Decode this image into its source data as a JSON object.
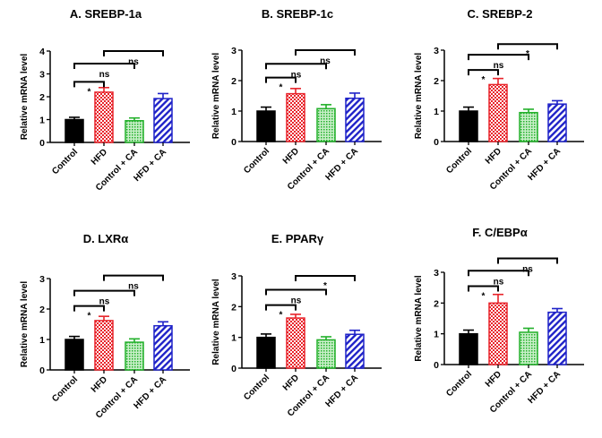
{
  "colors": {
    "Control": "#000000",
    "HFD": "#e8232a",
    "Control + CA": "#22b02a",
    "HFD + CA": "#1f22c8"
  },
  "chart_data": [
    {
      "type": "bar",
      "id": "A",
      "title": "A. SREBP-1a",
      "xlabel": "",
      "ylabel": "Relative mRNA level",
      "ylim": [
        0,
        4
      ],
      "yticks": [
        0,
        1,
        2,
        3,
        4
      ],
      "categories": [
        "Control",
        "HFD",
        "Control + CA",
        "HFD + CA"
      ],
      "values": [
        1.0,
        2.2,
        0.95,
        1.92
      ],
      "errors": [
        0.1,
        0.2,
        0.12,
        0.22
      ],
      "patterns": [
        "solid",
        "checker",
        "dots",
        "diagonal"
      ],
      "comparisons": [
        {
          "from": "Control",
          "to": "HFD",
          "label": "*",
          "level": 2.65
        },
        {
          "from": "Control",
          "to": "Control + CA",
          "label": "ns",
          "level": 3.45
        },
        {
          "from": "HFD",
          "to": "HFD + CA",
          "label": "ns",
          "level": 4.0
        }
      ]
    },
    {
      "type": "bar",
      "id": "B",
      "title": "B. SREBP-1c",
      "xlabel": "",
      "ylabel": "Relative mRNA level",
      "ylim": [
        0,
        3
      ],
      "yticks": [
        0,
        1,
        2,
        3
      ],
      "categories": [
        "Control",
        "HFD",
        "Control + CA",
        "HFD + CA"
      ],
      "values": [
        1.0,
        1.57,
        1.08,
        1.42
      ],
      "errors": [
        0.13,
        0.17,
        0.13,
        0.17
      ],
      "patterns": [
        "solid",
        "checker",
        "dots",
        "diagonal"
      ],
      "comparisons": [
        {
          "from": "Control",
          "to": "HFD",
          "label": "*",
          "level": 2.1
        },
        {
          "from": "Control",
          "to": "Control + CA",
          "label": "ns",
          "level": 2.55
        },
        {
          "from": "HFD",
          "to": "HFD + CA",
          "label": "ns",
          "level": 3.0
        }
      ]
    },
    {
      "type": "bar",
      "id": "C",
      "title": "C. SREBP-2",
      "xlabel": "",
      "ylabel": "Relative mRNA level",
      "ylim": [
        0,
        3
      ],
      "yticks": [
        0,
        1,
        2,
        3
      ],
      "categories": [
        "Control",
        "HFD",
        "Control + CA",
        "HFD + CA"
      ],
      "values": [
        1.0,
        1.87,
        0.95,
        1.23
      ],
      "errors": [
        0.13,
        0.2,
        0.11,
        0.11
      ],
      "patterns": [
        "solid",
        "checker",
        "dots",
        "diagonal"
      ],
      "comparisons": [
        {
          "from": "Control",
          "to": "HFD",
          "label": "*",
          "level": 2.35
        },
        {
          "from": "Control",
          "to": "Control + CA",
          "label": "ns",
          "level": 2.85
        },
        {
          "from": "HFD",
          "to": "HFD + CA",
          "label": "*",
          "level": 3.2
        }
      ]
    },
    {
      "type": "bar",
      "id": "D",
      "title": "D. LXRα",
      "xlabel": "",
      "ylabel": "Relative mRNA level",
      "ylim": [
        0,
        3
      ],
      "yticks": [
        0,
        1,
        2,
        3
      ],
      "categories": [
        "Control",
        "HFD",
        "Control + CA",
        "HFD + CA"
      ],
      "values": [
        1.0,
        1.62,
        0.91,
        1.45
      ],
      "errors": [
        0.1,
        0.14,
        0.11,
        0.13
      ],
      "patterns": [
        "solid",
        "checker",
        "dots",
        "diagonal"
      ],
      "comparisons": [
        {
          "from": "Control",
          "to": "HFD",
          "label": "*",
          "level": 2.1
        },
        {
          "from": "Control",
          "to": "Control + CA",
          "label": "ns",
          "level": 2.6
        },
        {
          "from": "HFD",
          "to": "HFD + CA",
          "label": "ns",
          "level": 3.1
        }
      ]
    },
    {
      "type": "bar",
      "id": "E",
      "title": "E. PPARγ",
      "xlabel": "",
      "ylabel": "Relative mRNA level",
      "ylim": [
        0,
        3
      ],
      "yticks": [
        0,
        1,
        2,
        3
      ],
      "categories": [
        "Control",
        "HFD",
        "Control + CA",
        "HFD + CA"
      ],
      "values": [
        1.0,
        1.63,
        0.92,
        1.1
      ],
      "errors": [
        0.11,
        0.12,
        0.1,
        0.13
      ],
      "patterns": [
        "solid",
        "checker",
        "dots",
        "diagonal"
      ],
      "comparisons": [
        {
          "from": "Control",
          "to": "HFD",
          "label": "*",
          "level": 2.05
        },
        {
          "from": "Control",
          "to": "Control + CA",
          "label": "ns",
          "level": 2.55
        },
        {
          "from": "HFD",
          "to": "HFD + CA",
          "label": "*",
          "level": 3.0
        }
      ]
    },
    {
      "type": "bar",
      "id": "F",
      "title": "F. C/EBPα",
      "xlabel": "",
      "ylabel": "Relative mRNA level",
      "ylim": [
        0,
        3
      ],
      "yticks": [
        0,
        1,
        2,
        3
      ],
      "categories": [
        "Control",
        "HFD",
        "Control + CA",
        "HFD + CA"
      ],
      "values": [
        1.0,
        2.0,
        1.05,
        1.7
      ],
      "errors": [
        0.12,
        0.28,
        0.13,
        0.12
      ],
      "patterns": [
        "solid",
        "checker",
        "dots",
        "diagonal"
      ],
      "comparisons": [
        {
          "from": "Control",
          "to": "HFD",
          "label": "*",
          "level": 2.55
        },
        {
          "from": "Control",
          "to": "Control + CA",
          "label": "ns",
          "level": 3.05
        },
        {
          "from": "HFD",
          "to": "HFD + CA",
          "label": "ns",
          "level": 3.45
        }
      ]
    }
  ]
}
